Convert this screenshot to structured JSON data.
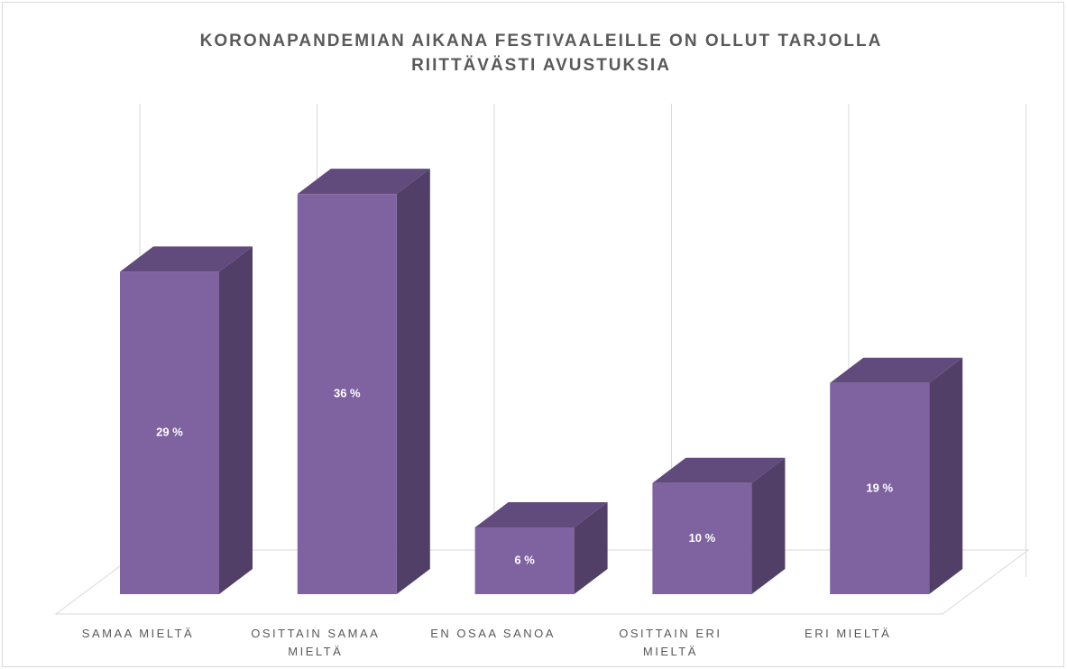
{
  "chart_data": {
    "type": "bar3d",
    "title": "KORONAPANDEMIAN AIKANA FESTIVAALEILLE ON OLLUT TARJOLLA RIITTÄVÄSTI AVUSTUKSIA",
    "categories": [
      "SAMAA MIELTÄ",
      "OSITTAIN SAMAA MIELTÄ",
      "EN OSAA SANOA",
      "OSITTAIN ERI MIELTÄ",
      "ERI MIELTÄ"
    ],
    "values": [
      29,
      36,
      6,
      10,
      19
    ],
    "value_labels": [
      "29 %",
      "36 %",
      "6 %",
      "10 %",
      "19 %"
    ],
    "color": "#7f63a0"
  }
}
